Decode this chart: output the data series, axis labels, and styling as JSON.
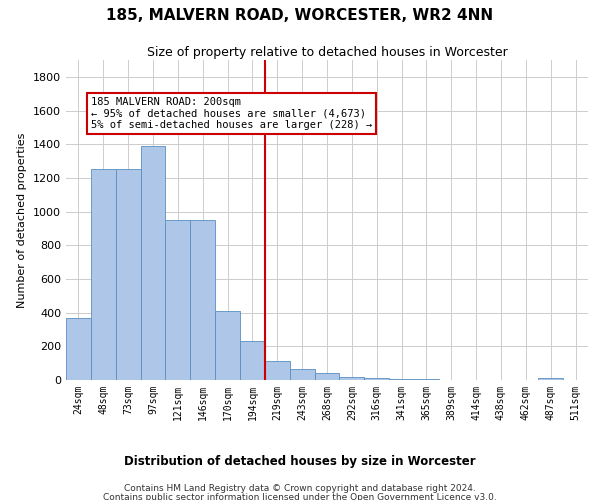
{
  "title": "185, MALVERN ROAD, WORCESTER, WR2 4NN",
  "subtitle": "Size of property relative to detached houses in Worcester",
  "xlabel": "Distribution of detached houses by size in Worcester",
  "ylabel": "Number of detached properties",
  "footer_line1": "Contains HM Land Registry data © Crown copyright and database right 2024.",
  "footer_line2": "Contains public sector information licensed under the Open Government Licence v3.0.",
  "annotation_title": "185 MALVERN ROAD: 200sqm",
  "annotation_line1": "← 95% of detached houses are smaller (4,673)",
  "annotation_line2": "5% of semi-detached houses are larger (228) →",
  "categories": [
    "24sqm",
    "48sqm",
    "73sqm",
    "97sqm",
    "121sqm",
    "146sqm",
    "170sqm",
    "194sqm",
    "219sqm",
    "243sqm",
    "268sqm",
    "292sqm",
    "316sqm",
    "341sqm",
    "365sqm",
    "389sqm",
    "414sqm",
    "438sqm",
    "462sqm",
    "487sqm",
    "511sqm"
  ],
  "bar_values": [
    370,
    1250,
    1250,
    1390,
    950,
    950,
    410,
    230,
    110,
    65,
    40,
    20,
    10,
    5,
    5,
    2,
    2,
    2,
    2,
    10,
    2
  ],
  "bar_color": "#aec6e8",
  "bar_edge_color": "#5a8fc0",
  "vline_color": "#cc0000",
  "vline_x_index": 7,
  "annotation_box_color": "#cc0000",
  "annotation_bg_color": "#ffffff",
  "grid_color": "#cccccc",
  "ylim": [
    0,
    1900
  ],
  "yticks": [
    0,
    200,
    400,
    600,
    800,
    1000,
    1200,
    1400,
    1600,
    1800
  ]
}
